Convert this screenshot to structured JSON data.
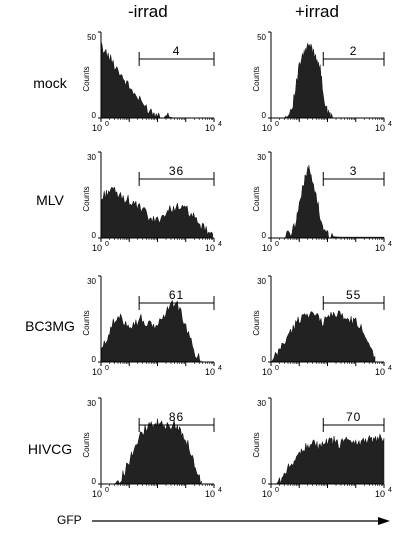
{
  "columns": [
    "-irrad",
    "+irrad"
  ],
  "rows": [
    "mock",
    "MLV",
    "BC3MG",
    "HIVCG"
  ],
  "x_axis_label": "GFP",
  "y_axis_label": "Counts",
  "chart_data": [
    {
      "type": "area",
      "row": "mock",
      "column": "-irrad",
      "gate_percent": "4",
      "ylim": [
        0,
        50
      ],
      "yticks": [
        "0",
        "50"
      ],
      "xticks": [
        "10^0",
        "10^4"
      ],
      "xscale": "log",
      "xlim": [
        1,
        10000
      ],
      "x": [
        1,
        1.2,
        1.5,
        1.8,
        2.2,
        2.7,
        3.3,
        4,
        5,
        6,
        7.5,
        9,
        11,
        14,
        17,
        21,
        26,
        32,
        40,
        50,
        60,
        75,
        90,
        110,
        140,
        170,
        210,
        260,
        320,
        400
      ],
      "y": [
        42,
        40,
        38,
        36,
        34,
        32,
        30,
        28,
        26,
        23,
        21,
        19,
        17,
        15,
        13,
        11,
        9,
        8,
        6,
        5,
        4,
        3,
        2.5,
        2,
        1.5,
        1,
        0.8,
        0.5,
        0.3,
        0
      ]
    },
    {
      "type": "area",
      "row": "mock",
      "column": "+irrad",
      "gate_percent": "2",
      "ylim": [
        0,
        50
      ],
      "yticks": [
        "0",
        "50"
      ],
      "xticks": [
        "10^0",
        "10^4"
      ],
      "xscale": "log",
      "xlim": [
        1,
        10000
      ],
      "x": [
        3,
        4,
        5,
        6,
        7,
        8,
        9,
        10,
        12,
        14,
        16,
        18,
        20,
        23,
        26,
        30,
        34,
        38,
        43,
        48,
        55,
        62,
        70,
        80,
        90,
        100,
        115,
        130,
        150,
        170
      ],
      "y": [
        0,
        2,
        5,
        9,
        14,
        20,
        25,
        30,
        34,
        37,
        38,
        40,
        41,
        42,
        41,
        40,
        38,
        36,
        34,
        32,
        28,
        22,
        15,
        9,
        5,
        3,
        1.5,
        0.8,
        0.3,
        0
      ]
    },
    {
      "type": "area",
      "row": "MLV",
      "column": "-irrad",
      "gate_percent": "36",
      "ylim": [
        0,
        30
      ],
      "yticks": [
        "0",
        "30"
      ],
      "xticks": [
        "10^0",
        "10^4"
      ],
      "xscale": "log",
      "xlim": [
        1,
        10000
      ],
      "x": [
        1,
        1.3,
        1.7,
        2.2,
        3,
        4,
        5.5,
        7.5,
        10,
        14,
        19,
        26,
        35,
        48,
        65,
        90,
        120,
        165,
        225,
        300,
        410,
        560,
        760,
        1000,
        1400,
        1900,
        2600,
        3500,
        4800,
        6500,
        9000
      ],
      "y": [
        13,
        15,
        16,
        17,
        16,
        15,
        14,
        14,
        13,
        12,
        11,
        10,
        9,
        7,
        6,
        6,
        7,
        8,
        9,
        10,
        11,
        11,
        10,
        10,
        9,
        7,
        5,
        4,
        3,
        2,
        1.5
      ]
    },
    {
      "type": "area",
      "row": "MLV",
      "column": "+irrad",
      "gate_percent": "3",
      "ylim": [
        0,
        30
      ],
      "yticks": [
        "0",
        "30"
      ],
      "xticks": [
        "10^0",
        "10^4"
      ],
      "xscale": "log",
      "xlim": [
        1,
        10000
      ],
      "x": [
        3,
        4,
        5,
        6,
        7,
        8,
        9,
        10,
        12,
        14,
        16,
        18,
        20,
        22,
        25,
        28,
        32,
        36,
        40,
        45,
        50,
        56,
        63,
        72,
        82,
        95,
        110,
        130,
        160,
        200,
        300,
        1000,
        10000
      ],
      "y": [
        0,
        1,
        2,
        3,
        5,
        7,
        9,
        12,
        15,
        18,
        21,
        23,
        25,
        24,
        22,
        20,
        18,
        16,
        14,
        12,
        10,
        7,
        5,
        3,
        2,
        1.5,
        1,
        0.7,
        0.5,
        0.4,
        0.3,
        0.3,
        0.3
      ]
    },
    {
      "type": "area",
      "row": "BC3MG",
      "column": "-irrad",
      "gate_percent": "61",
      "ylim": [
        0,
        30
      ],
      "yticks": [
        "0",
        "30"
      ],
      "xticks": [
        "10^0",
        "10^4"
      ],
      "xscale": "log",
      "xlim": [
        1,
        10000
      ],
      "x": [
        1,
        1.3,
        1.7,
        2.2,
        3,
        4,
        5.5,
        7.5,
        10,
        14,
        19,
        26,
        35,
        48,
        65,
        90,
        120,
        165,
        225,
        300,
        410,
        560,
        760,
        1000,
        1400,
        1900,
        2600,
        3500
      ],
      "y": [
        3,
        6,
        9,
        12,
        14,
        15,
        15,
        14,
        13,
        13,
        14,
        15,
        14,
        13,
        12,
        13,
        14,
        16,
        18,
        20,
        21,
        19,
        16,
        12,
        8,
        4,
        2,
        0.5
      ]
    },
    {
      "type": "area",
      "row": "BC3MG",
      "column": "+irrad",
      "gate_percent": "55",
      "ylim": [
        0,
        30
      ],
      "yticks": [
        "0",
        "30"
      ],
      "xticks": [
        "10^0",
        "10^4"
      ],
      "xscale": "log",
      "xlim": [
        1,
        10000
      ],
      "x": [
        1,
        1.3,
        1.7,
        2.2,
        3,
        4,
        5.5,
        7.5,
        10,
        14,
        19,
        26,
        35,
        48,
        65,
        90,
        120,
        165,
        225,
        300,
        410,
        560,
        760,
        1000,
        1400,
        1900,
        2600,
        3500,
        4800
      ],
      "y": [
        0,
        1,
        3,
        5,
        7,
        9,
        11,
        13,
        15,
        16,
        17,
        17,
        16,
        15,
        14,
        15,
        16,
        17,
        17,
        16,
        15,
        15,
        14,
        14,
        12,
        11,
        8,
        5,
        2
      ]
    },
    {
      "type": "area",
      "row": "HIVCG",
      "column": "-irrad",
      "gate_percent": "86",
      "ylim": [
        0,
        30
      ],
      "yticks": [
        "0",
        "30"
      ],
      "xticks": [
        "10^0",
        "10^4"
      ],
      "xscale": "log",
      "xlim": [
        1,
        10000
      ],
      "x": [
        3,
        4,
        5,
        6.5,
        8,
        10,
        13,
        17,
        22,
        28,
        36,
        46,
        60,
        77,
        100,
        130,
        170,
        220,
        280,
        360,
        460,
        600,
        780,
        1000,
        1300,
        1700,
        2200,
        2800,
        3600
      ],
      "y": [
        0,
        1,
        2,
        4,
        6,
        8,
        11,
        14,
        16,
        18,
        19,
        20,
        20,
        20,
        21,
        21,
        20,
        20,
        20,
        21,
        20,
        19,
        18,
        16,
        13,
        10,
        6,
        3,
        1
      ]
    },
    {
      "type": "area",
      "row": "HIVCG",
      "column": "+irrad",
      "gate_percent": "70",
      "ylim": [
        0,
        30
      ],
      "yticks": [
        "0",
        "30"
      ],
      "xticks": [
        "10^0",
        "10^4"
      ],
      "xscale": "log",
      "xlim": [
        1,
        10000
      ],
      "x": [
        1.5,
        2,
        2.7,
        3.5,
        4.5,
        6,
        8,
        10,
        13,
        17,
        22,
        28,
        36,
        46,
        60,
        77,
        100,
        130,
        170,
        220,
        280,
        360,
        460,
        600,
        780,
        1000,
        1300,
        1700,
        2200,
        2800,
        3600,
        4600,
        6000,
        7800,
        10000
      ],
      "y": [
        0,
        1,
        2,
        4,
        6,
        8,
        10,
        11,
        12,
        13,
        13,
        14,
        14,
        13,
        13,
        14,
        14,
        15,
        15,
        14,
        14,
        15,
        15,
        16,
        15,
        15,
        14,
        15,
        15,
        16,
        15,
        16,
        15,
        16,
        16
      ]
    }
  ]
}
